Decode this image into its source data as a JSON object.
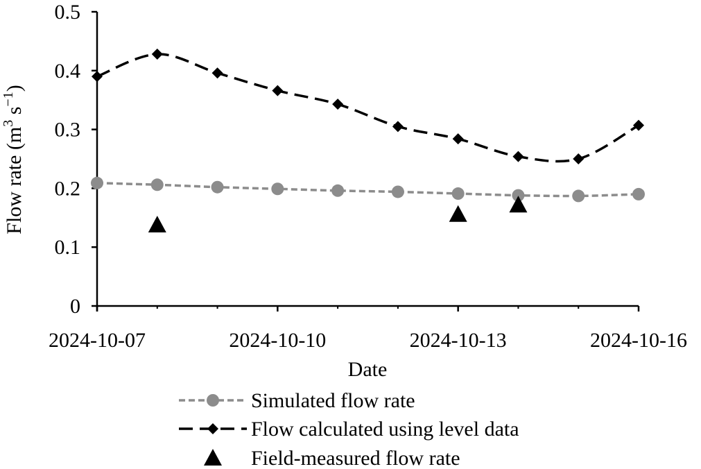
{
  "chart_data": {
    "type": "line",
    "title": "",
    "xlabel": "Date",
    "ylabel_main": "Flow rate (m",
    "ylabel_sup1": "3",
    "ylabel_mid": " s",
    "ylabel_sup2": "−1",
    "ylabel_end": ")",
    "xlim": [
      "2024-10-07",
      "2024-10-16"
    ],
    "ylim": [
      0,
      0.5
    ],
    "y_ticks": [
      "0",
      "0.1",
      "0.2",
      "0.3",
      "0.4",
      "0.5"
    ],
    "x_ticks": [
      "2024-10-07",
      "2024-10-10",
      "2024-10-13",
      "2024-10-16"
    ],
    "grid": false,
    "legend_position": "bottom",
    "series": [
      {
        "name": "Simulated flow rate",
        "marker": "circle",
        "line": "short-dash",
        "color": "#8c8c8c",
        "points": [
          {
            "x": "2024-10-07",
            "y": 0.209
          },
          {
            "x": "2024-10-08",
            "y": 0.206
          },
          {
            "x": "2024-10-09",
            "y": 0.202
          },
          {
            "x": "2024-10-10",
            "y": 0.199
          },
          {
            "x": "2024-10-11",
            "y": 0.196
          },
          {
            "x": "2024-10-12",
            "y": 0.194
          },
          {
            "x": "2024-10-13",
            "y": 0.191
          },
          {
            "x": "2024-10-14",
            "y": 0.188
          },
          {
            "x": "2024-10-15",
            "y": 0.187
          },
          {
            "x": "2024-10-16",
            "y": 0.19
          }
        ]
      },
      {
        "name": "Flow calculated using level data",
        "marker": "diamond",
        "line": "long-dash",
        "color": "#000000",
        "points": [
          {
            "x": "2024-10-07",
            "y": 0.39
          },
          {
            "x": "2024-10-08",
            "y": 0.428
          },
          {
            "x": "2024-10-09",
            "y": 0.396
          },
          {
            "x": "2024-10-10",
            "y": 0.366
          },
          {
            "x": "2024-10-11",
            "y": 0.343
          },
          {
            "x": "2024-10-12",
            "y": 0.305
          },
          {
            "x": "2024-10-13",
            "y": 0.284
          },
          {
            "x": "2024-10-14",
            "y": 0.254
          },
          {
            "x": "2024-10-15",
            "y": 0.25
          },
          {
            "x": "2024-10-16",
            "y": 0.307
          }
        ]
      },
      {
        "name": "Field-measured flow rate",
        "marker": "triangle",
        "line": "none",
        "color": "#000000",
        "points": [
          {
            "x": "2024-10-08",
            "y": 0.138
          },
          {
            "x": "2024-10-13",
            "y": 0.156
          },
          {
            "x": "2024-10-14",
            "y": 0.172
          }
        ]
      }
    ]
  }
}
